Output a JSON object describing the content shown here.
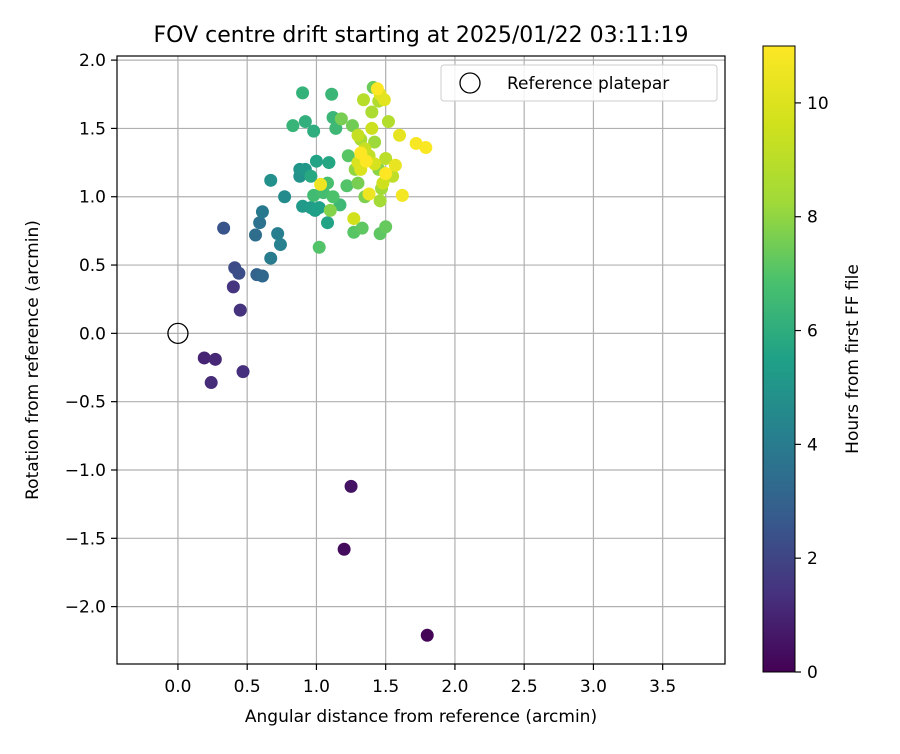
{
  "chart_data": {
    "type": "scatter",
    "title": "FOV centre drift starting at 2025/01/22 03:11:19",
    "xlabel": "Angular distance from reference (arcmin)",
    "ylabel": "Rotation from reference (arcmin)",
    "xlim": [
      -0.44,
      3.95
    ],
    "ylim": [
      -2.42,
      2.03
    ],
    "xticks": [
      "0.0",
      "0.5",
      "1.0",
      "1.5",
      "2.0",
      "2.5",
      "3.0",
      "3.5"
    ],
    "yticks": [
      "−2.0",
      "−1.5",
      "−1.0",
      "−0.5",
      "0.0",
      "0.5",
      "1.0",
      "1.5",
      "2.0"
    ],
    "grid": true,
    "legend": {
      "position": "top-right",
      "entries": [
        "Reference platepar"
      ]
    },
    "reference_point": {
      "x": 0.0,
      "y": 0.0
    },
    "colorbar": {
      "label": "Hours from first FF file",
      "range": [
        0,
        11
      ],
      "ticks": [
        "0",
        "2",
        "4",
        "6",
        "8",
        "10"
      ],
      "colormap": "viridis"
    },
    "series": [
      {
        "points": [
          {
            "x": 1.8,
            "y": -2.21,
            "h": 0.1
          },
          {
            "x": 1.2,
            "y": -1.58,
            "h": 0.3
          },
          {
            "x": 1.25,
            "y": -1.12,
            "h": 0.5
          },
          {
            "x": 0.19,
            "y": -0.18,
            "h": 1.0
          },
          {
            "x": 0.27,
            "y": -0.19,
            "h": 1.1
          },
          {
            "x": 0.24,
            "y": -0.36,
            "h": 1.2
          },
          {
            "x": 0.47,
            "y": -0.28,
            "h": 1.3
          },
          {
            "x": 0.45,
            "y": 0.17,
            "h": 1.4
          },
          {
            "x": 0.4,
            "y": 0.34,
            "h": 1.5
          },
          {
            "x": 0.41,
            "y": 0.48,
            "h": 2.2
          },
          {
            "x": 0.44,
            "y": 0.44,
            "h": 2.3
          },
          {
            "x": 0.33,
            "y": 0.77,
            "h": 2.5
          },
          {
            "x": 0.57,
            "y": 0.43,
            "h": 3.0
          },
          {
            "x": 0.61,
            "y": 0.42,
            "h": 3.2
          },
          {
            "x": 0.56,
            "y": 0.72,
            "h": 3.4
          },
          {
            "x": 0.59,
            "y": 0.81,
            "h": 3.6
          },
          {
            "x": 0.61,
            "y": 0.89,
            "h": 3.9
          },
          {
            "x": 0.67,
            "y": 0.55,
            "h": 4.0
          },
          {
            "x": 0.72,
            "y": 0.73,
            "h": 4.1
          },
          {
            "x": 0.74,
            "y": 0.65,
            "h": 4.2
          },
          {
            "x": 0.77,
            "y": 1.0,
            "h": 4.6
          },
          {
            "x": 0.67,
            "y": 1.12,
            "h": 4.8
          },
          {
            "x": 0.88,
            "y": 1.15,
            "h": 4.9
          },
          {
            "x": 0.88,
            "y": 1.2,
            "h": 5.0
          },
          {
            "x": 0.92,
            "y": 1.2,
            "h": 5.1
          },
          {
            "x": 0.9,
            "y": 0.93,
            "h": 5.2
          },
          {
            "x": 0.96,
            "y": 0.92,
            "h": 5.3
          },
          {
            "x": 0.99,
            "y": 0.9,
            "h": 5.4
          },
          {
            "x": 1.02,
            "y": 0.92,
            "h": 5.5
          },
          {
            "x": 1.0,
            "y": 1.26,
            "h": 5.6
          },
          {
            "x": 1.08,
            "y": 0.81,
            "h": 5.6
          },
          {
            "x": 1.09,
            "y": 1.25,
            "h": 5.7
          },
          {
            "x": 0.96,
            "y": 1.15,
            "h": 5.8
          },
          {
            "x": 0.98,
            "y": 1.48,
            "h": 6.0
          },
          {
            "x": 0.92,
            "y": 1.55,
            "h": 6.1
          },
          {
            "x": 0.9,
            "y": 1.76,
            "h": 6.2
          },
          {
            "x": 0.83,
            "y": 1.52,
            "h": 6.3
          },
          {
            "x": 1.11,
            "y": 1.75,
            "h": 6.4
          },
          {
            "x": 1.12,
            "y": 1.58,
            "h": 6.4
          },
          {
            "x": 1.14,
            "y": 1.5,
            "h": 6.5
          },
          {
            "x": 1.17,
            "y": 0.94,
            "h": 6.5
          },
          {
            "x": 0.98,
            "y": 1.01,
            "h": 6.6
          },
          {
            "x": 1.05,
            "y": 1.03,
            "h": 6.7
          },
          {
            "x": 1.08,
            "y": 1.1,
            "h": 6.8
          },
          {
            "x": 1.12,
            "y": 1.0,
            "h": 6.9
          },
          {
            "x": 1.02,
            "y": 0.63,
            "h": 7.0
          },
          {
            "x": 1.22,
            "y": 1.08,
            "h": 7.0
          },
          {
            "x": 1.23,
            "y": 1.3,
            "h": 7.1
          },
          {
            "x": 1.27,
            "y": 0.74,
            "h": 7.1
          },
          {
            "x": 1.33,
            "y": 0.77,
            "h": 7.2
          },
          {
            "x": 1.46,
            "y": 0.73,
            "h": 7.2
          },
          {
            "x": 1.5,
            "y": 0.78,
            "h": 7.3
          },
          {
            "x": 1.41,
            "y": 1.8,
            "h": 7.4
          },
          {
            "x": 1.26,
            "y": 1.52,
            "h": 7.5
          },
          {
            "x": 1.18,
            "y": 1.57,
            "h": 7.6
          },
          {
            "x": 1.3,
            "y": 1.1,
            "h": 7.6
          },
          {
            "x": 1.35,
            "y": 1.0,
            "h": 7.7
          },
          {
            "x": 1.1,
            "y": 0.9,
            "h": 7.8
          },
          {
            "x": 1.45,
            "y": 1.2,
            "h": 7.9
          },
          {
            "x": 1.28,
            "y": 1.2,
            "h": 8.0
          },
          {
            "x": 1.36,
            "y": 1.3,
            "h": 8.1
          },
          {
            "x": 1.42,
            "y": 1.4,
            "h": 8.2
          },
          {
            "x": 1.47,
            "y": 1.06,
            "h": 8.3
          },
          {
            "x": 1.46,
            "y": 0.97,
            "h": 8.4
          },
          {
            "x": 1.32,
            "y": 1.42,
            "h": 8.5
          },
          {
            "x": 1.4,
            "y": 1.62,
            "h": 8.6
          },
          {
            "x": 1.45,
            "y": 1.7,
            "h": 8.7
          },
          {
            "x": 1.52,
            "y": 1.55,
            "h": 8.8
          },
          {
            "x": 1.34,
            "y": 1.71,
            "h": 8.9
          },
          {
            "x": 1.5,
            "y": 1.28,
            "h": 9.0
          },
          {
            "x": 1.55,
            "y": 1.15,
            "h": 9.1
          },
          {
            "x": 1.38,
            "y": 1.3,
            "h": 9.2
          },
          {
            "x": 1.3,
            "y": 1.45,
            "h": 9.3
          },
          {
            "x": 1.35,
            "y": 1.35,
            "h": 9.4
          },
          {
            "x": 1.4,
            "y": 1.5,
            "h": 9.5
          },
          {
            "x": 1.48,
            "y": 1.1,
            "h": 9.6
          },
          {
            "x": 1.27,
            "y": 0.84,
            "h": 9.7
          },
          {
            "x": 1.42,
            "y": 1.24,
            "h": 9.8
          },
          {
            "x": 1.3,
            "y": 1.25,
            "h": 9.9
          },
          {
            "x": 1.32,
            "y": 1.2,
            "h": 10.0
          },
          {
            "x": 1.46,
            "y": 1.75,
            "h": 10.1
          },
          {
            "x": 1.49,
            "y": 1.71,
            "h": 10.2
          },
          {
            "x": 1.6,
            "y": 1.45,
            "h": 10.3
          },
          {
            "x": 1.57,
            "y": 1.23,
            "h": 10.4
          },
          {
            "x": 1.38,
            "y": 1.02,
            "h": 10.5
          },
          {
            "x": 1.03,
            "y": 1.09,
            "h": 10.6
          },
          {
            "x": 1.62,
            "y": 1.01,
            "h": 10.7
          },
          {
            "x": 1.72,
            "y": 1.39,
            "h": 10.8
          },
          {
            "x": 1.79,
            "y": 1.36,
            "h": 10.9
          },
          {
            "x": 1.44,
            "y": 1.79,
            "h": 11.0
          },
          {
            "x": 1.36,
            "y": 1.26,
            "h": 11.0
          },
          {
            "x": 1.5,
            "y": 1.17,
            "h": 11.0
          },
          {
            "x": 1.32,
            "y": 1.32,
            "h": 11.0
          }
        ]
      }
    ]
  }
}
